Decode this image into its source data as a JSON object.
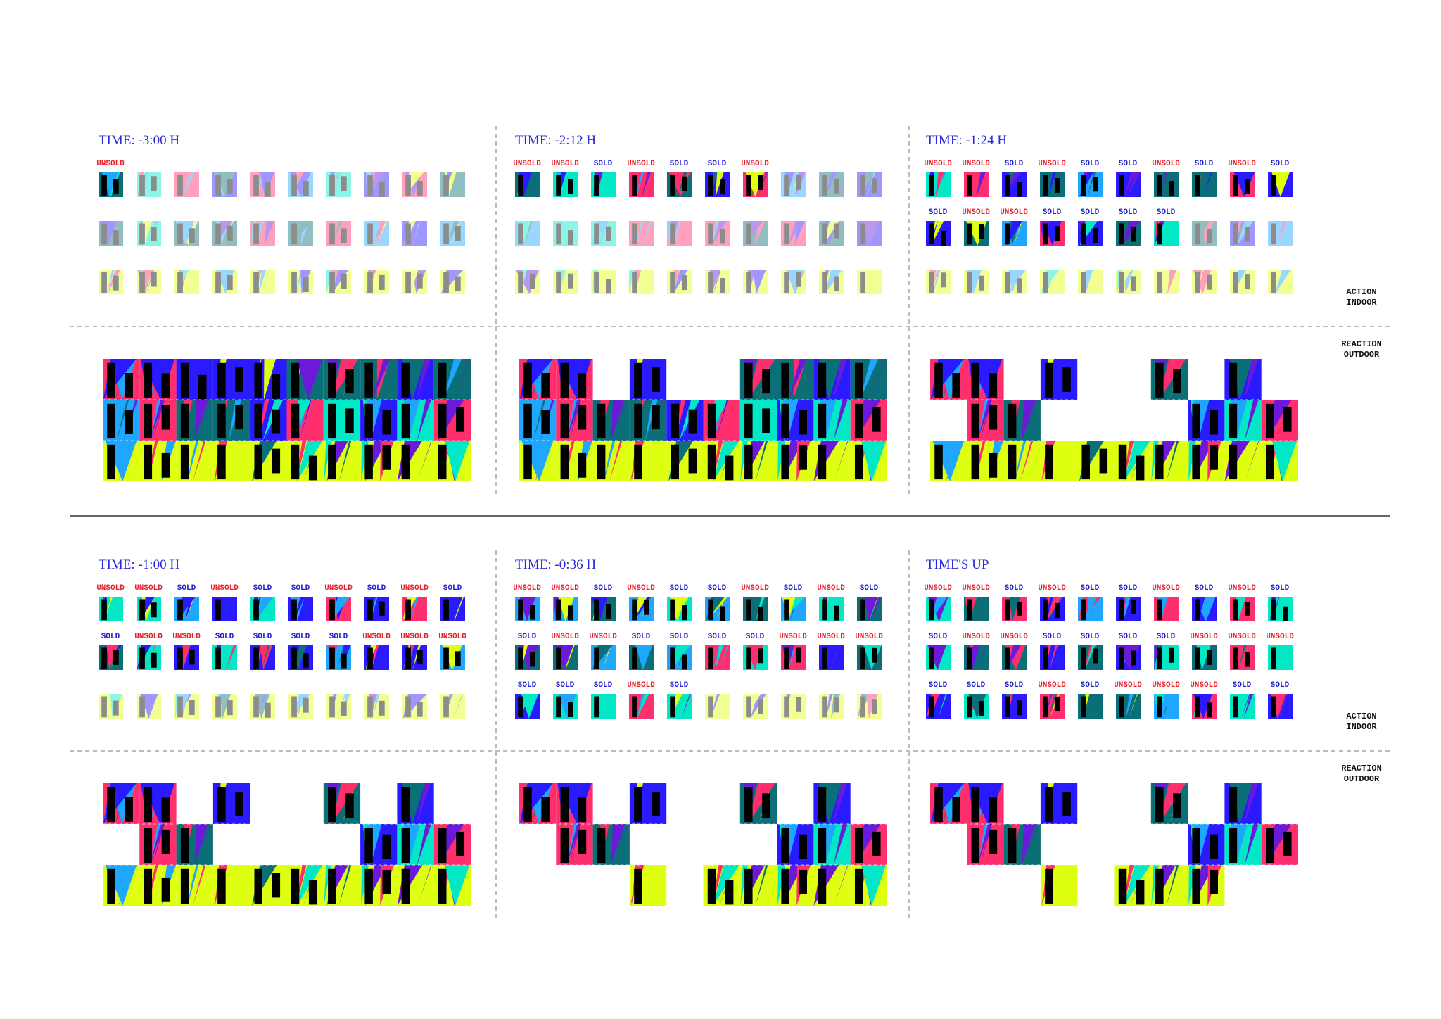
{
  "sections": [
    {
      "action": [
        "ACTION",
        "INDOOR"
      ],
      "reaction": [
        "REACTION",
        "OUTDOOR"
      ],
      "panels": [
        {
          "time": "TIME: -3:00 H",
          "rows": [
            [
              "UNSOLD",
              null,
              null,
              null,
              null,
              null,
              null,
              null,
              null,
              null
            ],
            [
              null,
              null,
              null,
              null,
              null,
              null,
              null,
              null,
              null,
              null
            ],
            [
              null,
              null,
              null,
              null,
              null,
              null,
              null,
              null,
              null,
              null
            ]
          ]
        },
        {
          "time": "TIME: -2:12 H",
          "rows": [
            [
              "UNSOLD",
              "UNSOLD",
              "SOLD",
              "UNSOLD",
              "SOLD",
              "SOLD",
              "UNSOLD",
              null,
              null,
              null
            ],
            [
              null,
              null,
              null,
              null,
              null,
              null,
              null,
              null,
              null,
              null
            ],
            [
              null,
              null,
              null,
              null,
              null,
              null,
              null,
              null,
              null,
              null
            ]
          ]
        },
        {
          "time": "TIME: -1:24 H",
          "rows": [
            [
              "UNSOLD",
              "UNSOLD",
              "SOLD",
              "UNSOLD",
              "SOLD",
              "SOLD",
              "UNSOLD",
              "SOLD",
              "UNSOLD",
              "SOLD"
            ],
            [
              "SOLD",
              "UNSOLD",
              "UNSOLD",
              "SOLD",
              "SOLD",
              "SOLD",
              "SOLD",
              null,
              null,
              null
            ],
            [
              null,
              null,
              null,
              null,
              null,
              null,
              null,
              null,
              null,
              null
            ]
          ]
        }
      ]
    },
    {
      "action": [
        "ACTION",
        "INDOOR"
      ],
      "reaction": [
        "REACTION",
        "OUTDOOR"
      ],
      "panels": [
        {
          "time": "TIME: -1:00 H",
          "rows": [
            [
              "UNSOLD",
              "UNSOLD",
              "SOLD",
              "UNSOLD",
              "SOLD",
              "SOLD",
              "UNSOLD",
              "SOLD",
              "UNSOLD",
              "SOLD"
            ],
            [
              "SOLD",
              "UNSOLD",
              "UNSOLD",
              "SOLD",
              "SOLD",
              "SOLD",
              "SOLD",
              "UNSOLD",
              "UNSOLD",
              "UNSOLD"
            ],
            [
              null,
              null,
              null,
              null,
              null,
              null,
              null,
              null,
              null,
              null
            ]
          ]
        },
        {
          "time": "TIME: -0:36 H",
          "rows": [
            [
              "UNSOLD",
              "UNSOLD",
              "SOLD",
              "UNSOLD",
              "SOLD",
              "SOLD",
              "UNSOLD",
              "SOLD",
              "UNSOLD",
              "SOLD"
            ],
            [
              "SOLD",
              "UNSOLD",
              "UNSOLD",
              "SOLD",
              "SOLD",
              "SOLD",
              "SOLD",
              "UNSOLD",
              "UNSOLD",
              "UNSOLD"
            ],
            [
              "SOLD",
              "SOLD",
              "SOLD",
              "UNSOLD",
              "SOLD",
              null,
              null,
              null,
              null,
              null
            ]
          ]
        },
        {
          "time": "TIME'S UP",
          "rows": [
            [
              "UNSOLD",
              "UNSOLD",
              "SOLD",
              "UNSOLD",
              "SOLD",
              "SOLD",
              "UNSOLD",
              "SOLD",
              "UNSOLD",
              "SOLD"
            ],
            [
              "SOLD",
              "UNSOLD",
              "UNSOLD",
              "SOLD",
              "SOLD",
              "SOLD",
              "SOLD",
              "UNSOLD",
              "UNSOLD",
              "UNSOLD"
            ],
            [
              "SOLD",
              "SOLD",
              "SOLD",
              "UNSOLD",
              "SOLD",
              "UNSOLD",
              "UNSOLD",
              "UNSOLD",
              "SOLD",
              "SOLD"
            ]
          ]
        }
      ]
    }
  ]
}
